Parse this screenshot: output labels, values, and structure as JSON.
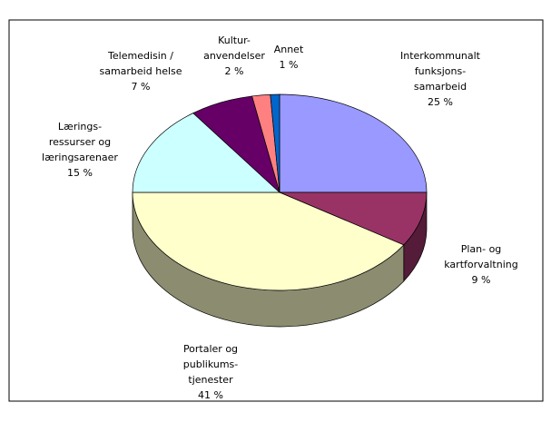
{
  "chart_data": {
    "type": "pie3d",
    "categories": [
      [
        "Interkommunalt",
        "funksjons-",
        "samarbeid"
      ],
      [
        "Plan- og",
        "kartforvaltning"
      ],
      [
        "Portaler og",
        "publikums-",
        "tjenester"
      ],
      [
        "Lærings-",
        "ressurser og",
        "læringsarenaer"
      ],
      [
        "Telemedisin /",
        "samarbeid helse"
      ],
      [
        "Kultur-",
        "anvendelser"
      ],
      [
        "Annet"
      ]
    ],
    "values": [
      25,
      9,
      41,
      15,
      7,
      2,
      1
    ],
    "value_labels": [
      "25 %",
      "9 %",
      "41 %",
      "15 %",
      "7 %",
      "2 %",
      "1 %"
    ],
    "colors": [
      "#9999ff",
      "#993366",
      "#ffffcc",
      "#ccffff",
      "#660066",
      "#ff8080",
      "#0066cc"
    ]
  }
}
